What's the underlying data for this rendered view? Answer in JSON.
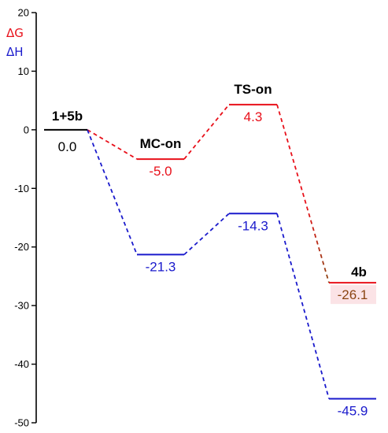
{
  "chart_data": {
    "type": "line",
    "ylim": [
      -50,
      20
    ],
    "y_ticks": [
      20,
      10,
      0,
      -10,
      -20,
      -30,
      -40,
      -50
    ],
    "grid": false,
    "legend_position": "top-left",
    "states": [
      "1+5b",
      "MC-on",
      "TS-on",
      "4b"
    ],
    "series": [
      {
        "name": "ΔG",
        "color": "#e8101a",
        "values": [
          0.0,
          -5.0,
          4.3,
          -26.1
        ],
        "labels": [
          "0.0",
          "-5.0",
          "4.3",
          "-26.1"
        ]
      },
      {
        "name": "ΔH",
        "color": "#1a1acc",
        "values": [
          0.0,
          -21.3,
          -14.3,
          -45.9
        ],
        "labels": [
          "0.0",
          "-21.3",
          "-14.3",
          "-45.9"
        ]
      }
    ],
    "shared_start_label": "0.0",
    "highlight_label_color": "#8b4513",
    "highlight_bg_color": "#fbe3e6",
    "start_level_color": "#000000"
  }
}
